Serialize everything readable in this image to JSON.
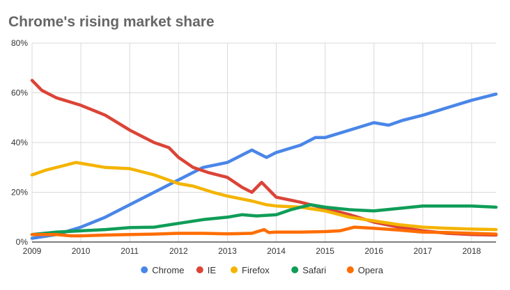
{
  "chart_data": {
    "type": "line",
    "title": "Chrome's rising market share",
    "xlabel": "",
    "ylabel": "",
    "xlim": [
      2009,
      2018.5
    ],
    "ylim": [
      0,
      80
    ],
    "x_ticks": [
      "2009",
      "2010",
      "2011",
      "2012",
      "2013",
      "2014",
      "2015",
      "2016",
      "2017",
      "2018"
    ],
    "y_ticks": [
      "0%",
      "20%",
      "40%",
      "60%",
      "80%"
    ],
    "grid": true,
    "legend_position": "bottom",
    "series": [
      {
        "name": "Chrome",
        "color": "#4a86e8",
        "points": [
          [
            2009,
            1.5
          ],
          [
            2009.5,
            3
          ],
          [
            2010,
            6
          ],
          [
            2010.5,
            10
          ],
          [
            2011,
            15
          ],
          [
            2011.5,
            20
          ],
          [
            2012,
            25
          ],
          [
            2012.5,
            30
          ],
          [
            2013,
            32
          ],
          [
            2013.3,
            35
          ],
          [
            2013.5,
            37
          ],
          [
            2013.8,
            34
          ],
          [
            2014,
            36
          ],
          [
            2014.5,
            39
          ],
          [
            2014.8,
            42
          ],
          [
            2015,
            42
          ],
          [
            2015.5,
            45
          ],
          [
            2016,
            48
          ],
          [
            2016.3,
            47
          ],
          [
            2016.6,
            49
          ],
          [
            2017,
            51
          ],
          [
            2017.5,
            54
          ],
          [
            2018,
            57
          ],
          [
            2018.5,
            59.5
          ]
        ]
      },
      {
        "name": "IE",
        "color": "#db4437",
        "points": [
          [
            2009,
            65
          ],
          [
            2009.2,
            61
          ],
          [
            2009.5,
            58
          ],
          [
            2010,
            55
          ],
          [
            2010.5,
            51
          ],
          [
            2011,
            45
          ],
          [
            2011.5,
            40
          ],
          [
            2011.8,
            38
          ],
          [
            2012,
            34
          ],
          [
            2012.3,
            30
          ],
          [
            2012.6,
            28
          ],
          [
            2013,
            26
          ],
          [
            2013.3,
            22
          ],
          [
            2013.5,
            20
          ],
          [
            2013.7,
            24
          ],
          [
            2013.9,
            20
          ],
          [
            2014,
            18
          ],
          [
            2014.5,
            16
          ],
          [
            2015,
            13.5
          ],
          [
            2015.5,
            11
          ],
          [
            2016,
            8
          ],
          [
            2016.5,
            6
          ],
          [
            2017,
            4.5
          ],
          [
            2017.5,
            3.5
          ],
          [
            2018,
            3
          ],
          [
            2018.5,
            2.8
          ]
        ]
      },
      {
        "name": "Firefox",
        "color": "#f4b400",
        "points": [
          [
            2009,
            27
          ],
          [
            2009.3,
            29
          ],
          [
            2009.6,
            30.5
          ],
          [
            2009.9,
            32
          ],
          [
            2010.2,
            31
          ],
          [
            2010.5,
            30
          ],
          [
            2011,
            29.5
          ],
          [
            2011.5,
            27
          ],
          [
            2012,
            23.5
          ],
          [
            2012.3,
            22.5
          ],
          [
            2012.7,
            20
          ],
          [
            2013,
            18.5
          ],
          [
            2013.5,
            16.5
          ],
          [
            2013.8,
            15
          ],
          [
            2014,
            14.5
          ],
          [
            2014.5,
            14
          ],
          [
            2015,
            12.5
          ],
          [
            2015.5,
            10
          ],
          [
            2016,
            8.5
          ],
          [
            2016.5,
            7
          ],
          [
            2017,
            6
          ],
          [
            2017.5,
            5.5
          ],
          [
            2018,
            5.2
          ],
          [
            2018.5,
            5
          ]
        ]
      },
      {
        "name": "Safari",
        "color": "#0f9d58",
        "points": [
          [
            2009,
            3
          ],
          [
            2009.5,
            4
          ],
          [
            2010,
            4.5
          ],
          [
            2010.5,
            5
          ],
          [
            2011,
            5.8
          ],
          [
            2011.5,
            6
          ],
          [
            2012,
            7.5
          ],
          [
            2012.5,
            9
          ],
          [
            2013,
            10
          ],
          [
            2013.3,
            11
          ],
          [
            2013.6,
            10.5
          ],
          [
            2014,
            11
          ],
          [
            2014.3,
            13
          ],
          [
            2014.7,
            15
          ],
          [
            2015,
            14
          ],
          [
            2015.5,
            13
          ],
          [
            2016,
            12.5
          ],
          [
            2016.5,
            13.5
          ],
          [
            2017,
            14.5
          ],
          [
            2017.5,
            14.5
          ],
          [
            2018,
            14.5
          ],
          [
            2018.5,
            14
          ]
        ]
      },
      {
        "name": "Opera",
        "color": "#ff6d00",
        "points": [
          [
            2009,
            3
          ],
          [
            2009.5,
            3
          ],
          [
            2009.8,
            2.5
          ],
          [
            2010,
            2.5
          ],
          [
            2010.5,
            2.8
          ],
          [
            2011,
            3
          ],
          [
            2011.5,
            3.2
          ],
          [
            2012,
            3.5
          ],
          [
            2012.5,
            3.5
          ],
          [
            2013,
            3.3
          ],
          [
            2013.5,
            3.5
          ],
          [
            2013.75,
            5
          ],
          [
            2013.85,
            3.8
          ],
          [
            2014,
            4
          ],
          [
            2014.5,
            4
          ],
          [
            2015,
            4.2
          ],
          [
            2015.3,
            4.5
          ],
          [
            2015.6,
            6
          ],
          [
            2016,
            5.5
          ],
          [
            2016.5,
            4.8
          ],
          [
            2017,
            4
          ],
          [
            2017.5,
            3.8
          ],
          [
            2018,
            3.5
          ],
          [
            2018.5,
            3.2
          ]
        ]
      }
    ]
  }
}
